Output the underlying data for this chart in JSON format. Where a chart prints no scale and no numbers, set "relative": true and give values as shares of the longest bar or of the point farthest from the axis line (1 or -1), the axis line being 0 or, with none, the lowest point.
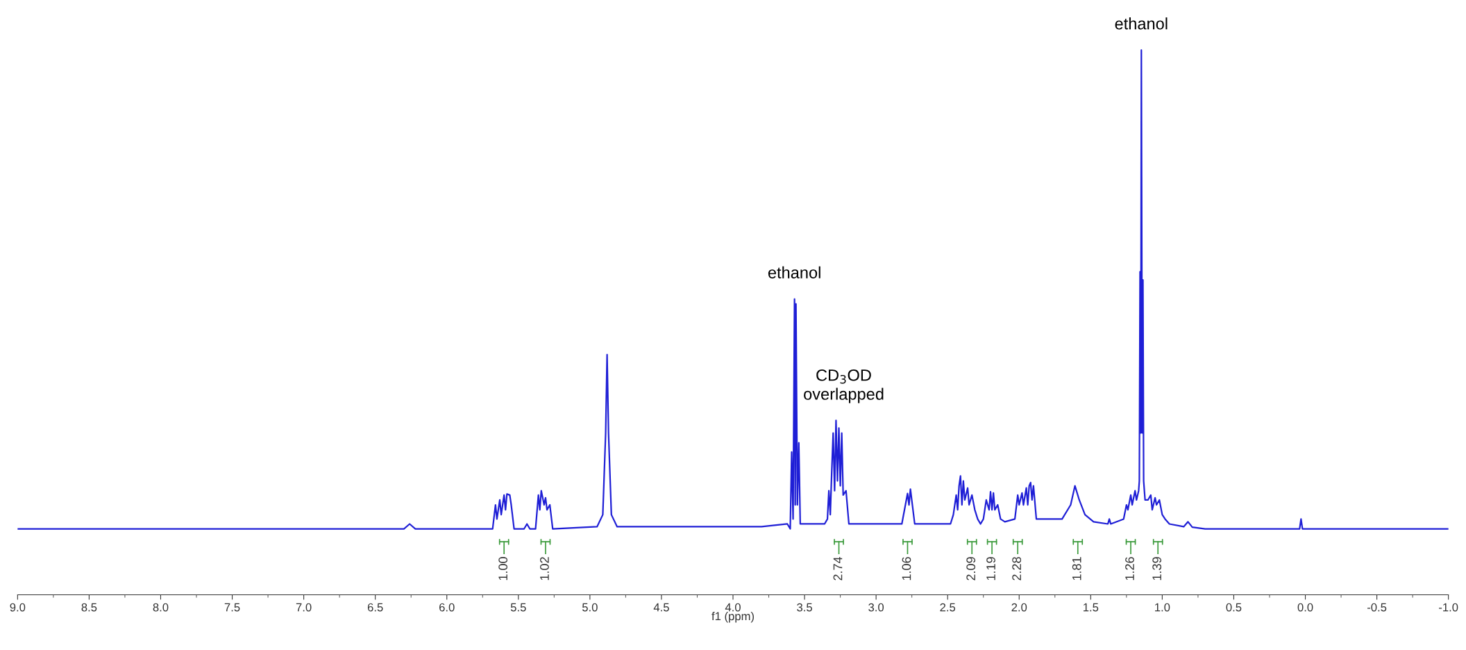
{
  "chart_data": {
    "type": "line",
    "relative": true,
    "xlabel": "f1 (ppm)",
    "xlim": [
      9.0,
      -1.0
    ],
    "xticks": [
      {
        "value": 9.0,
        "label": "9.0"
      },
      {
        "value": 8.5,
        "label": "8.5"
      },
      {
        "value": 8.0,
        "label": "8.0"
      },
      {
        "value": 7.5,
        "label": "7.5"
      },
      {
        "value": 7.0,
        "label": "7.0"
      },
      {
        "value": 6.5,
        "label": "6.5"
      },
      {
        "value": 6.0,
        "label": "6.0"
      },
      {
        "value": 5.5,
        "label": "5.5"
      },
      {
        "value": 5.0,
        "label": "5.0"
      },
      {
        "value": 4.5,
        "label": "4.5"
      },
      {
        "value": 4.0,
        "label": "4.0"
      },
      {
        "value": 3.5,
        "label": "3.5"
      },
      {
        "value": 3.0,
        "label": "3.0"
      },
      {
        "value": 2.5,
        "label": "2.5"
      },
      {
        "value": 2.0,
        "label": "2.0"
      },
      {
        "value": 1.5,
        "label": "1.5"
      },
      {
        "value": 1.0,
        "label": "1.0"
      },
      {
        "value": 0.5,
        "label": "0.5"
      },
      {
        "value": 0.0,
        "label": "0.0"
      },
      {
        "value": -0.5,
        "label": "-0.5"
      },
      {
        "value": -1.0,
        "label": "-1.0"
      }
    ],
    "tick_labels": "x",
    "grid": false,
    "series": [
      {
        "color": "#1f1fd6",
        "x": [
          9.0,
          6.3,
          6.26,
          6.22,
          5.68,
          5.66,
          5.65,
          5.63,
          5.62,
          5.6,
          5.59,
          5.58,
          5.56,
          5.55,
          5.53,
          5.46,
          5.44,
          5.42,
          5.38,
          5.36,
          5.35,
          5.34,
          5.32,
          5.31,
          5.3,
          5.28,
          5.26,
          4.95,
          4.91,
          4.89,
          4.88,
          4.87,
          4.85,
          4.81,
          3.8,
          3.62,
          3.6,
          3.59,
          3.58,
          3.57,
          3.565,
          3.56,
          3.55,
          3.54,
          3.53,
          3.36,
          3.34,
          3.33,
          3.32,
          3.31,
          3.3,
          3.29,
          3.28,
          3.27,
          3.26,
          3.25,
          3.24,
          3.23,
          3.21,
          3.19,
          2.82,
          2.78,
          2.77,
          2.76,
          2.73,
          2.48,
          2.46,
          2.44,
          2.43,
          2.42,
          2.41,
          2.4,
          2.39,
          2.38,
          2.36,
          2.35,
          2.33,
          2.31,
          2.29,
          2.27,
          2.25,
          2.23,
          2.21,
          2.2,
          2.19,
          2.18,
          2.17,
          2.15,
          2.13,
          2.1,
          2.03,
          2.01,
          2.0,
          1.98,
          1.97,
          1.95,
          1.94,
          1.93,
          1.92,
          1.91,
          1.9,
          1.88,
          1.7,
          1.64,
          1.61,
          1.58,
          1.54,
          1.48,
          1.38,
          1.37,
          1.36,
          1.27,
          1.25,
          1.24,
          1.22,
          1.21,
          1.19,
          1.18,
          1.165,
          1.16,
          1.155,
          1.15,
          1.146,
          1.14,
          1.135,
          1.13,
          1.12,
          1.1,
          1.08,
          1.07,
          1.05,
          1.04,
          1.02,
          1.0,
          0.98,
          0.95,
          0.85,
          0.82,
          0.79,
          0.7,
          0.04,
          0.03,
          0.02,
          -1.0
        ],
        "values": [
          0.121,
          0.121,
          0.13,
          0.121,
          0.121,
          0.165,
          0.139,
          0.174,
          0.147,
          0.183,
          0.156,
          0.185,
          0.183,
          0.165,
          0.121,
          0.121,
          0.13,
          0.121,
          0.121,
          0.183,
          0.156,
          0.191,
          0.165,
          0.178,
          0.156,
          0.165,
          0.121,
          0.125,
          0.147,
          0.297,
          0.441,
          0.297,
          0.147,
          0.125,
          0.125,
          0.13,
          0.121,
          0.262,
          0.139,
          0.543,
          0.165,
          0.534,
          0.165,
          0.279,
          0.13,
          0.13,
          0.139,
          0.191,
          0.147,
          0.226,
          0.297,
          0.191,
          0.32,
          0.209,
          0.306,
          0.2,
          0.297,
          0.183,
          0.191,
          0.13,
          0.13,
          0.186,
          0.165,
          0.194,
          0.13,
          0.13,
          0.147,
          0.183,
          0.156,
          0.2,
          0.218,
          0.165,
          0.209,
          0.174,
          0.196,
          0.165,
          0.183,
          0.156,
          0.139,
          0.13,
          0.139,
          0.174,
          0.156,
          0.189,
          0.156,
          0.187,
          0.156,
          0.165,
          0.139,
          0.134,
          0.139,
          0.183,
          0.165,
          0.187,
          0.165,
          0.196,
          0.165,
          0.2,
          0.206,
          0.174,
          0.2,
          0.139,
          0.139,
          0.165,
          0.2,
          0.174,
          0.147,
          0.134,
          0.13,
          0.139,
          0.13,
          0.139,
          0.165,
          0.156,
          0.183,
          0.165,
          0.191,
          0.174,
          0.191,
          0.209,
          0.593,
          0.297,
          1.0,
          0.297,
          0.578,
          0.209,
          0.174,
          0.174,
          0.183,
          0.156,
          0.178,
          0.165,
          0.174,
          0.147,
          0.139,
          0.13,
          0.125,
          0.134,
          0.124,
          0.121,
          0.121,
          0.139,
          0.121,
          0.121
        ]
      }
    ],
    "annotations": [
      {
        "text": "ethanol",
        "x": 3.57,
        "y": 0.543
      },
      {
        "text": "ethanol",
        "x": 1.146,
        "y": 1.0
      },
      {
        "text": "CD$_{3}$OD\noverlapped",
        "x": 3.28,
        "y": 0.32
      },
      {
        "text": "1.00",
        "x": 5.6
      },
      {
        "text": "1.02",
        "x": 5.31
      },
      {
        "text": "2.74",
        "x": 3.26
      },
      {
        "text": "1.06",
        "x": 2.78
      },
      {
        "text": "2.09",
        "x": 2.33
      },
      {
        "text": "1.19",
        "x": 2.19
      },
      {
        "text": "2.28",
        "x": 2.01
      },
      {
        "text": "1.81",
        "x": 1.59
      },
      {
        "text": "1.26",
        "x": 1.22
      },
      {
        "text": "1.39",
        "x": 1.03
      }
    ]
  }
}
